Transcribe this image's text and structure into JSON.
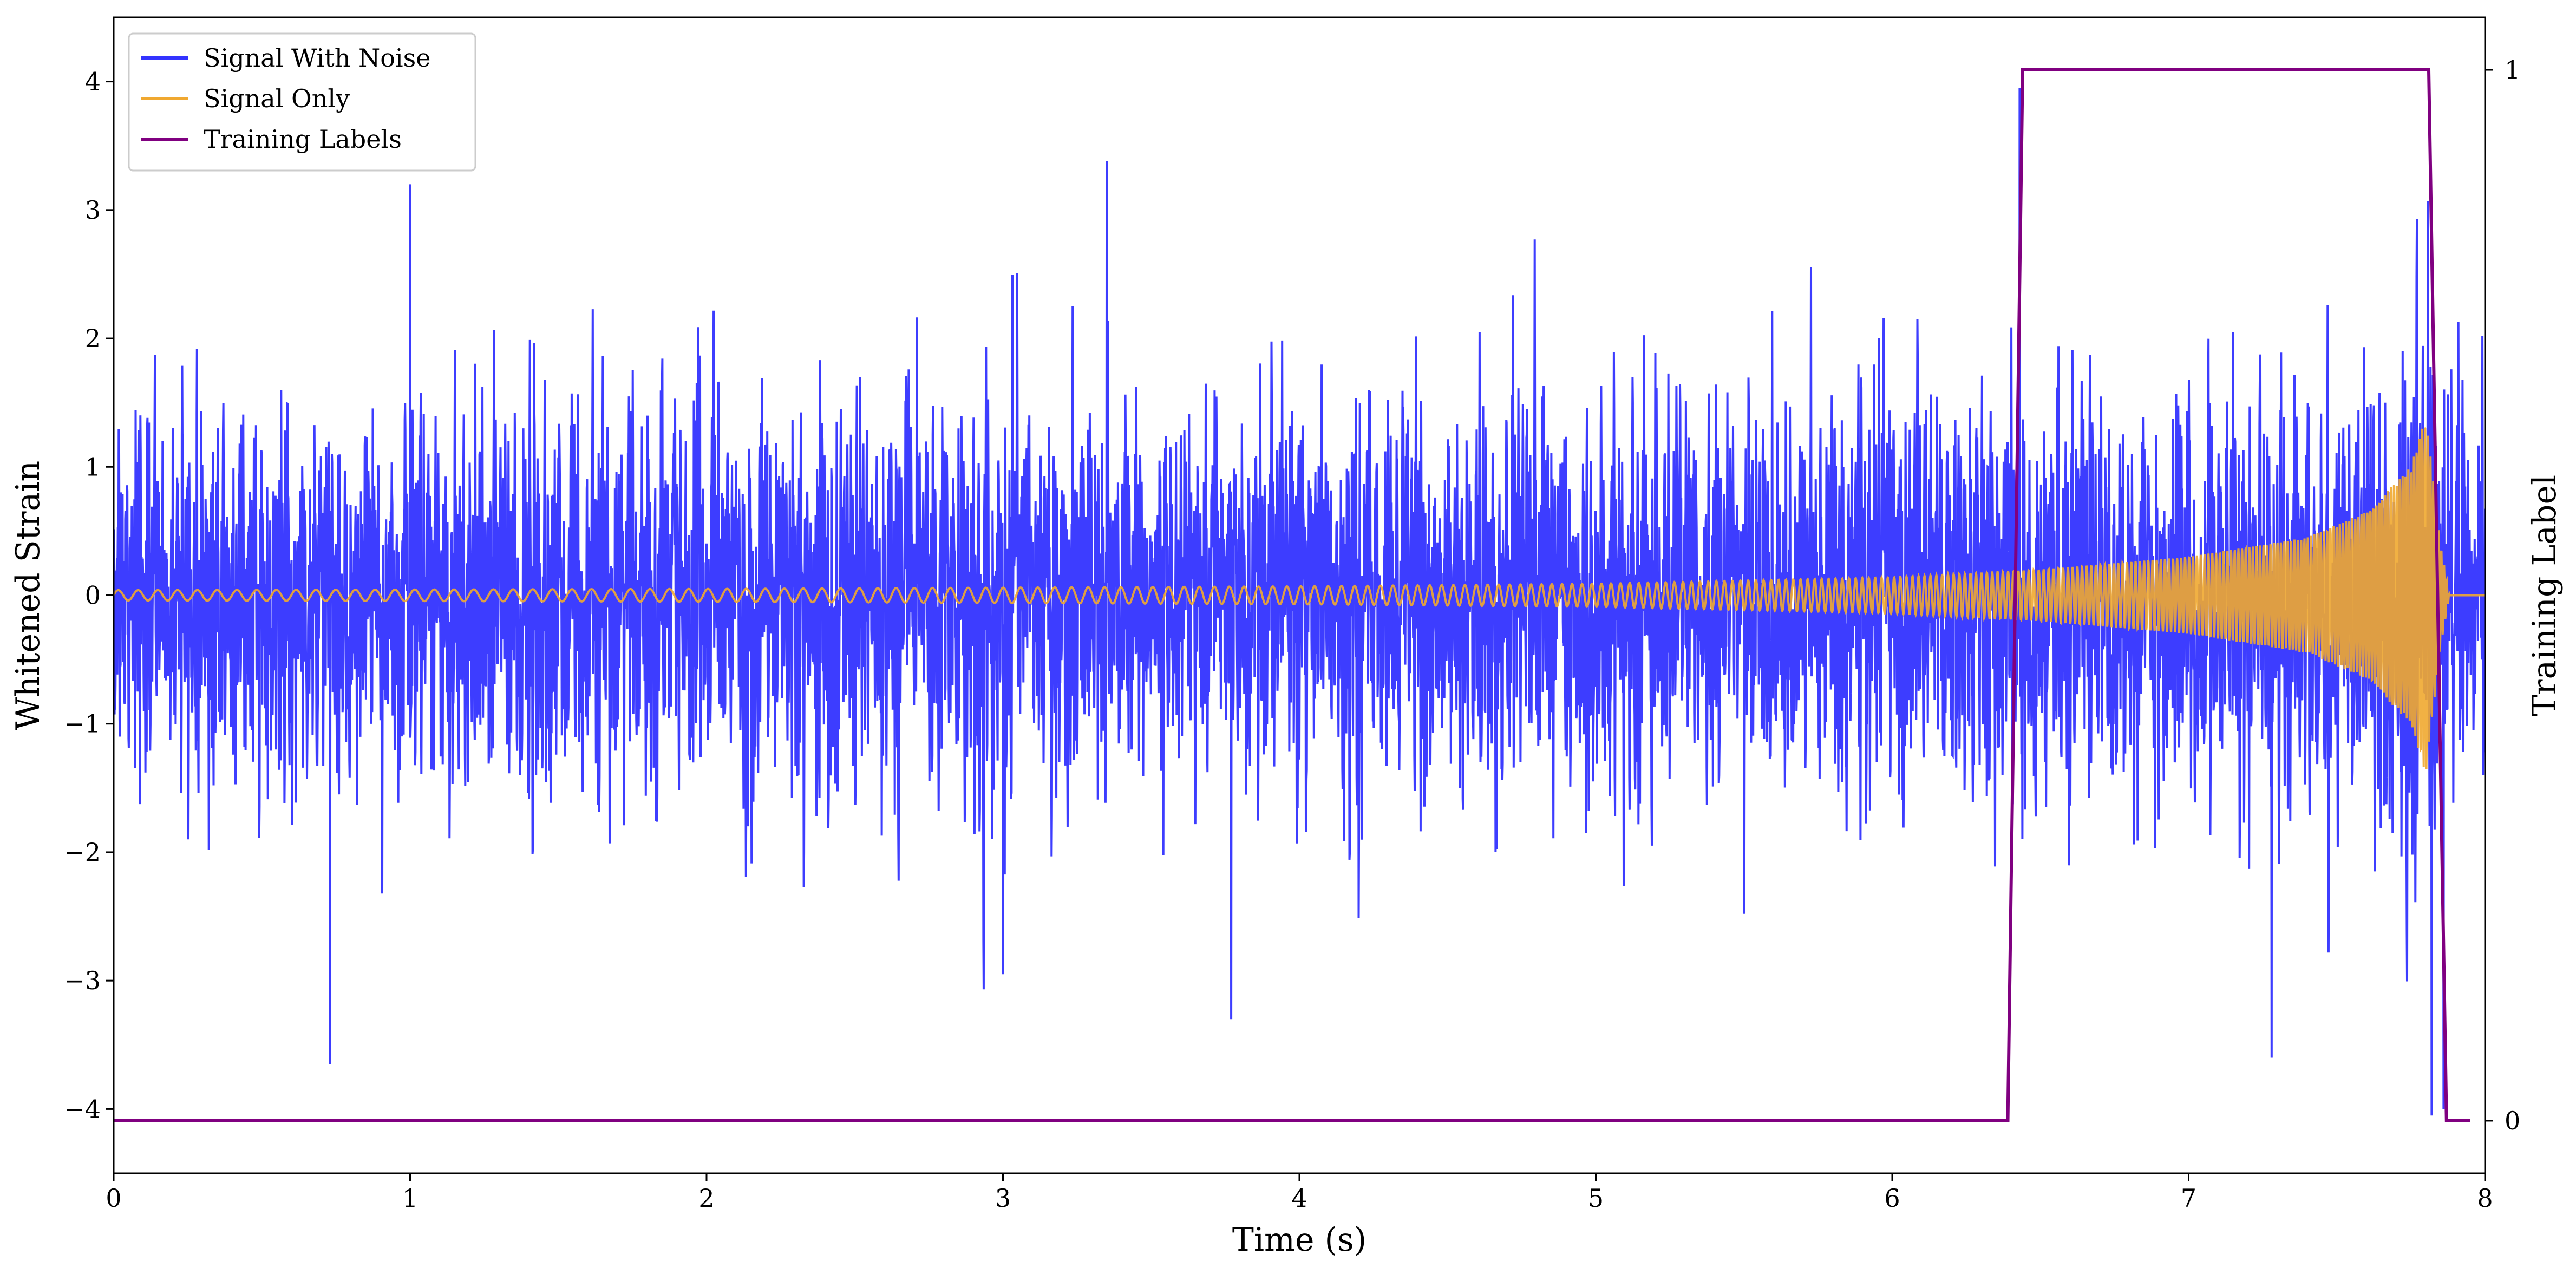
{
  "chart_data": {
    "type": "line",
    "title": "",
    "xlabel": "Time (s)",
    "ylabel": "Whitened Strain",
    "y2label": "Training Label",
    "xlim": [
      0,
      8
    ],
    "ylim": [
      -4.5,
      4.5
    ],
    "y2lim": [
      -0.05,
      1.05
    ],
    "x_ticks": [
      "0",
      "1",
      "2",
      "3",
      "4",
      "5",
      "6",
      "7",
      "8"
    ],
    "y_ticks": [
      "−4",
      "−3",
      "−2",
      "−1",
      "0",
      "1",
      "2",
      "3",
      "4"
    ],
    "y2_ticks": [
      "0",
      "1"
    ],
    "legend_position": "top-left",
    "grid": false,
    "series": [
      {
        "name": "Signal With Noise",
        "color": "#3333ff",
        "axis": "left",
        "description_values": {
          "noise_std": 1.0,
          "amplitude_range": [
            -4.1,
            4.0
          ],
          "notable_peaks": [
            [
              0.73,
              -3.65
            ],
            [
              1.0,
              3.2
            ],
            [
              3.35,
              3.38
            ],
            [
              3.77,
              -3.3
            ],
            [
              6.43,
              3.95
            ],
            [
              7.28,
              -3.6
            ],
            [
              7.82,
              -4.05
            ],
            [
              7.86,
              -4.0
            ]
          ]
        }
      },
      {
        "name": "Signal Only",
        "color": "#f0a830",
        "axis": "left",
        "description_values": {
          "type": "chirp",
          "envelope": [
            [
              0,
              0.04
            ],
            [
              2,
              0.05
            ],
            [
              4,
              0.07
            ],
            [
              5,
              0.09
            ],
            [
              6,
              0.14
            ],
            [
              6.5,
              0.2
            ],
            [
              7,
              0.3
            ],
            [
              7.4,
              0.45
            ],
            [
              7.6,
              0.65
            ],
            [
              7.75,
              1.0
            ],
            [
              7.8,
              1.4
            ],
            [
              7.85,
              0.4
            ],
            [
              7.88,
              0.0
            ],
            [
              8,
              0.0
            ]
          ],
          "frequency_start_hz": 15,
          "frequency_end_hz": 110
        }
      },
      {
        "name": "Training Labels",
        "color": "#800080",
        "axis": "right",
        "points": [
          [
            0,
            0
          ],
          [
            6.39,
            0
          ],
          [
            6.44,
            1
          ],
          [
            7.81,
            1
          ],
          [
            7.87,
            0
          ],
          [
            7.95,
            0
          ]
        ]
      }
    ]
  }
}
